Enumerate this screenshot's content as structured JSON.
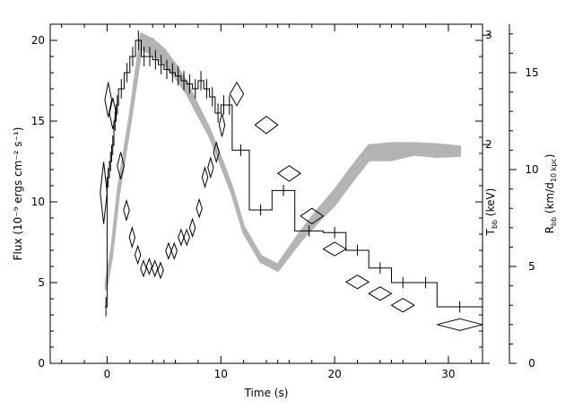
{
  "chart_data": {
    "type": "line",
    "xlabel": "Time (s)",
    "ylabel": "Flux (10⁻⁹ ergs cm⁻² s⁻¹)",
    "y2label": "T_bb (keV)",
    "y3label": "R_bb (km/d_10 kpc)",
    "xlim": [
      -5,
      33
    ],
    "ylim": [
      0,
      21
    ],
    "y2lim": [
      0,
      3.1
    ],
    "y3lim": [
      0,
      17.5
    ],
    "x_ticks": [
      "0",
      "10",
      "20",
      "30"
    ],
    "y_ticks": [
      "0",
      "5",
      "10",
      "15",
      "20"
    ],
    "y2_ticks": [
      "2",
      "3"
    ],
    "y3_ticks": [
      "0",
      "5",
      "10",
      "15"
    ],
    "series": [
      {
        "kind": "flux_histogram",
        "unit": "1e-9 ergs/cm^2/s",
        "bins": [
          [
            -0.2,
            0.0,
            3.5
          ],
          [
            0.0,
            0.2,
            11.5
          ],
          [
            0.2,
            0.4,
            12.5
          ],
          [
            0.4,
            0.6,
            13.5
          ],
          [
            0.6,
            0.8,
            15.0
          ],
          [
            0.8,
            1.0,
            16.0
          ],
          [
            1.0,
            1.5,
            17.0
          ],
          [
            1.5,
            2.0,
            18.0
          ],
          [
            2.0,
            2.5,
            19.0
          ],
          [
            2.5,
            3.0,
            20.0
          ],
          [
            3.0,
            3.5,
            19.0
          ],
          [
            3.5,
            4.0,
            19.0
          ],
          [
            4.0,
            4.5,
            18.8
          ],
          [
            4.5,
            5.0,
            18.5
          ],
          [
            5.0,
            5.5,
            18.2
          ],
          [
            5.5,
            6.0,
            18.0
          ],
          [
            6.0,
            6.5,
            17.8
          ],
          [
            6.5,
            7.0,
            17.5
          ],
          [
            7.0,
            7.5,
            17.3
          ],
          [
            7.5,
            8.0,
            17.0
          ],
          [
            8.0,
            8.5,
            17.5
          ],
          [
            8.5,
            9.0,
            17.0
          ],
          [
            9.0,
            9.5,
            16.5
          ],
          [
            9.5,
            10.0,
            15.5
          ],
          [
            10.0,
            10.5,
            16.0
          ],
          [
            10.5,
            11.0,
            16.0
          ],
          [
            11.0,
            12.5,
            13.2
          ],
          [
            12.5,
            14.5,
            9.5
          ],
          [
            14.5,
            16.5,
            10.7
          ],
          [
            16.5,
            19.0,
            8.2
          ],
          [
            19.0,
            21.0,
            8.1
          ],
          [
            21.0,
            23.0,
            7.0
          ],
          [
            23.0,
            25.0,
            5.9
          ],
          [
            25.0,
            27.0,
            5.0
          ],
          [
            27.0,
            29.0,
            5.0
          ],
          [
            29.0,
            33.0,
            3.5
          ]
        ]
      },
      {
        "kind": "temperature_band",
        "unit": "keV",
        "x": [
          -0.1,
          0.4,
          1.0,
          2.0,
          3.0,
          4.0,
          5.0,
          6.0,
          7.0,
          8.0,
          9.0,
          10.0,
          11.0,
          12.0,
          13.5,
          15.0,
          17.0,
          18.5,
          20.0,
          21.5,
          23.0,
          25.0,
          27.0,
          29.0,
          31.0
        ],
        "lower": [
          0.68,
          0.97,
          1.53,
          2.18,
          2.88,
          2.82,
          2.74,
          2.62,
          2.47,
          2.27,
          2.08,
          1.82,
          1.55,
          1.2,
          0.93,
          0.85,
          1.12,
          1.29,
          1.45,
          1.66,
          1.86,
          1.86,
          1.91,
          1.89,
          1.9
        ],
        "upper": [
          0.74,
          1.04,
          1.61,
          2.25,
          3.01,
          2.96,
          2.87,
          2.73,
          2.57,
          2.35,
          2.14,
          1.88,
          1.6,
          1.25,
          0.98,
          0.9,
          1.2,
          1.4,
          1.58,
          1.79,
          1.99,
          2.01,
          2.01,
          2.0,
          1.98
        ]
      },
      {
        "kind": "radius_diamonds",
        "unit": "km/d_10kpc",
        "points": [
          [
            -0.3,
            8.8,
            0.3,
            1.6
          ],
          [
            0.1,
            13.6,
            0.3,
            0.9
          ],
          [
            0.5,
            12.9,
            0.3,
            0.8
          ],
          [
            1.2,
            10.2,
            0.3,
            0.7
          ],
          [
            1.7,
            7.9,
            0.25,
            0.5
          ],
          [
            2.2,
            6.5,
            0.25,
            0.5
          ],
          [
            2.7,
            5.6,
            0.25,
            0.45
          ],
          [
            3.2,
            4.9,
            0.25,
            0.4
          ],
          [
            3.7,
            5.0,
            0.25,
            0.4
          ],
          [
            4.2,
            4.9,
            0.25,
            0.4
          ],
          [
            4.7,
            4.8,
            0.25,
            0.4
          ],
          [
            5.4,
            5.8,
            0.25,
            0.4
          ],
          [
            5.9,
            5.8,
            0.25,
            0.4
          ],
          [
            6.5,
            6.5,
            0.25,
            0.4
          ],
          [
            7.0,
            6.5,
            0.25,
            0.4
          ],
          [
            7.5,
            7.0,
            0.25,
            0.45
          ],
          [
            8.1,
            8.0,
            0.25,
            0.45
          ],
          [
            8.6,
            9.6,
            0.25,
            0.5
          ],
          [
            9.1,
            10.1,
            0.25,
            0.5
          ],
          [
            9.6,
            10.9,
            0.25,
            0.5
          ],
          [
            10.1,
            12.3,
            0.25,
            0.6
          ],
          [
            11.4,
            13.9,
            0.6,
            0.6
          ],
          [
            14.0,
            12.3,
            1.0,
            0.45
          ],
          [
            16.0,
            9.8,
            1.0,
            0.4
          ],
          [
            18.0,
            7.6,
            1.0,
            0.4
          ],
          [
            20.0,
            5.9,
            1.0,
            0.35
          ],
          [
            22.0,
            4.2,
            1.0,
            0.35
          ],
          [
            24.0,
            3.6,
            1.0,
            0.35
          ],
          [
            26.0,
            3.0,
            1.0,
            0.35
          ],
          [
            31.0,
            2.0,
            2.0,
            0.3
          ]
        ]
      }
    ]
  }
}
